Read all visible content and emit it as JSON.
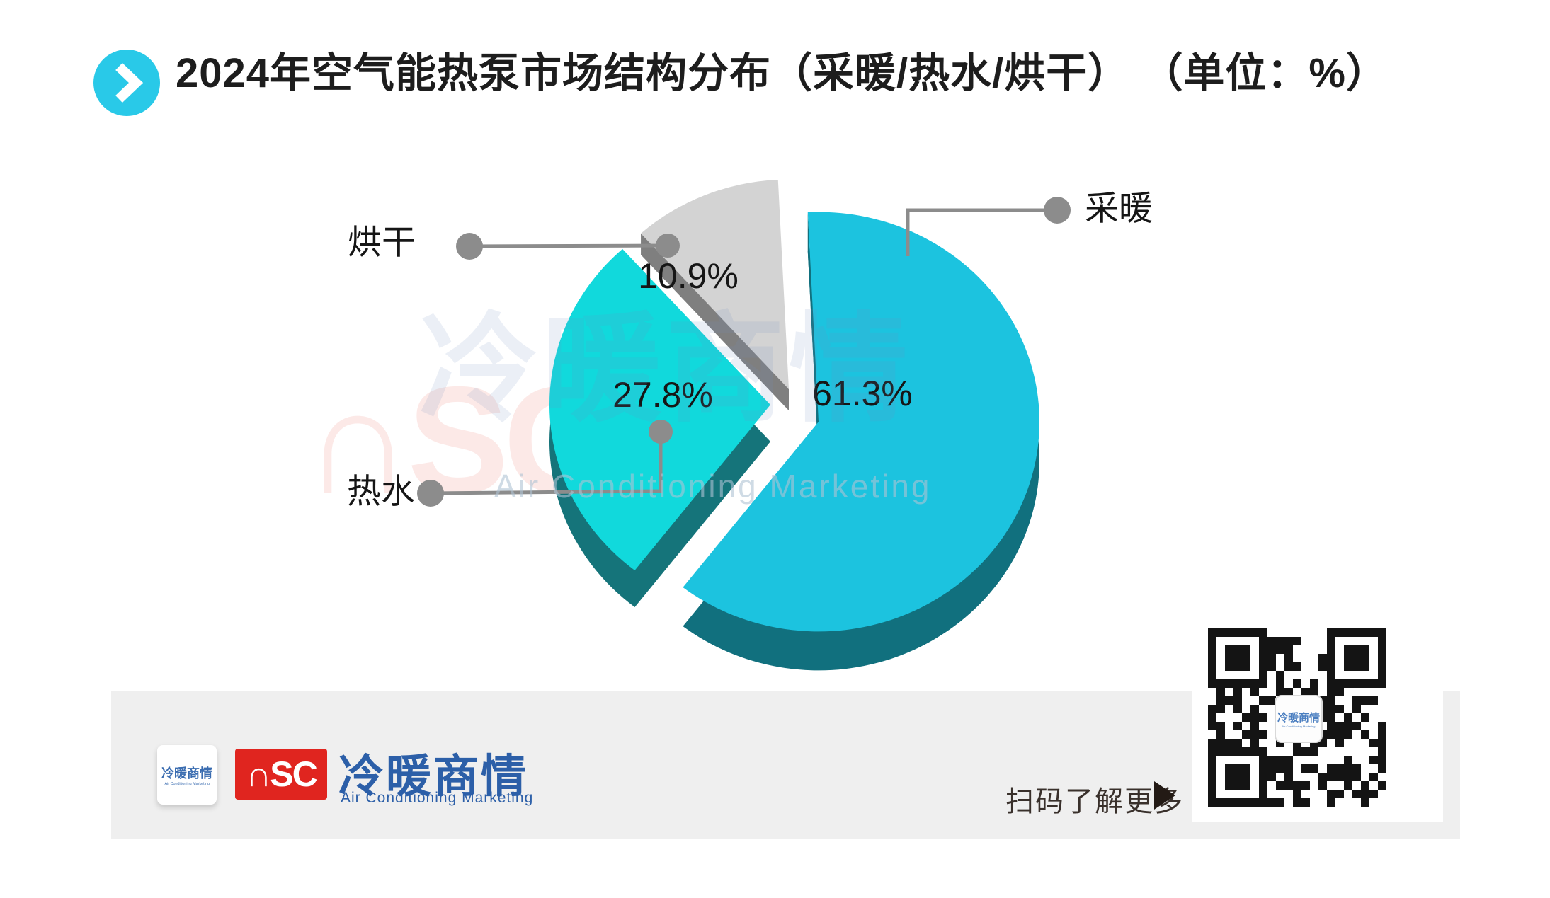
{
  "header": {
    "title": "2024年空气能热泵市场结构分布（采暖/热水/烘干） （单位：%）",
    "accent_color": "#29C9E8"
  },
  "chart_data": {
    "type": "pie",
    "title": "2024年空气能热泵市场结构分布（采暖/热水/烘干）",
    "unit": "%",
    "labels_show_percent": true,
    "legend_position": "callout-labels",
    "style": "3d-exploded",
    "slices": [
      {
        "label": "采暖",
        "value": 61.3,
        "color": "#1CC3DF",
        "side_color": "#11707E"
      },
      {
        "label": "热水",
        "value": 27.8,
        "color": "#11D9DC",
        "side_color": "#15747A"
      },
      {
        "label": "烘干",
        "value": 10.9,
        "color": "#D3D3D3",
        "side_color": "#7F7F7F"
      }
    ],
    "callout_color": "#8C8C8C",
    "label_color": "#161616"
  },
  "watermark": {
    "initials": "∩SC",
    "cjk": "冷暖商情",
    "en": "Air Conditioning Marketing"
  },
  "footer": {
    "band_color": "#EFEFEF",
    "card_text": "冷暖商情",
    "card_sub": "Air Conditioning Marketing",
    "brand_initials": "∩SC",
    "brand_red": "#E0251F",
    "brand_name": "冷暖商情",
    "brand_sub": "Air Conditioning Marketing",
    "brand_blue": "#2C5FA8",
    "qr_caption": "扫码了解更多",
    "qr_logo_text": "冷暖商情",
    "qr_logo_sub": "Air Conditioning Marketing"
  }
}
